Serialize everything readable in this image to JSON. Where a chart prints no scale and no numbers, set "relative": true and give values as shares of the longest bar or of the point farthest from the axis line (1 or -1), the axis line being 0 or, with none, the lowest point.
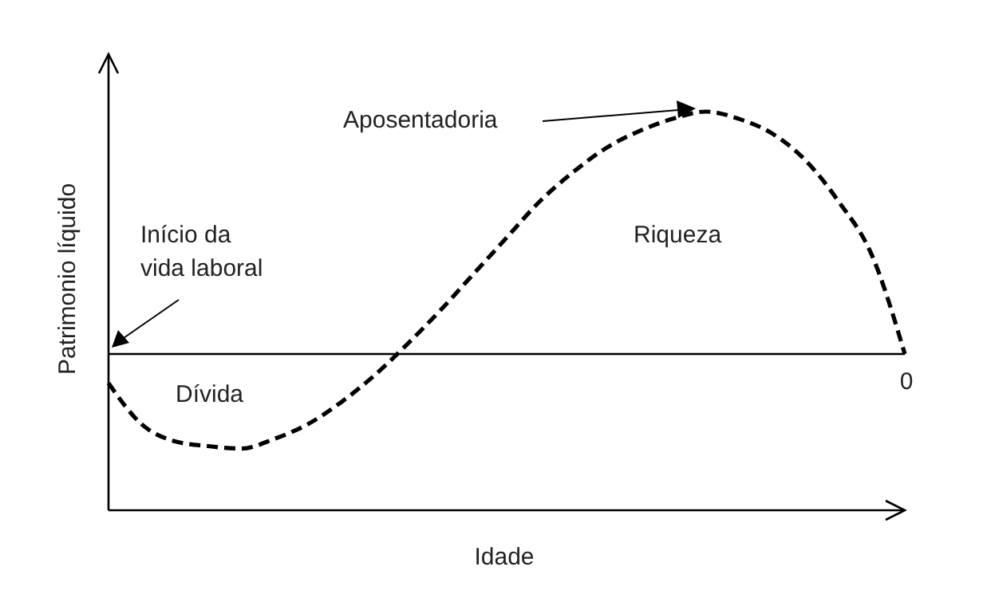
{
  "chart_data": {
    "type": "line",
    "relative": true,
    "xlabel": "Idade",
    "ylabel": "Patrimonio líquido",
    "categories": [
      null,
      null,
      null,
      null,
      null,
      null,
      null,
      null,
      null,
      null,
      null,
      null,
      null,
      null,
      null,
      null,
      null,
      null,
      null,
      null,
      null,
      null,
      null,
      null,
      null
    ],
    "series": [
      {
        "color": "#000000",
        "values": [
          -0.12,
          -0.29,
          -0.36,
          -0.38,
          -0.39,
          -0.35,
          -0.29,
          -0.2,
          -0.09,
          0.04,
          0.18,
          0.33,
          0.48,
          0.63,
          0.75,
          0.85,
          0.92,
          0.97,
          1,
          0.97,
          0.91,
          0.8,
          0.63,
          0.41,
          0
        ]
      }
    ],
    "line_style": "dashed",
    "marker": "none",
    "annotations": [
      "Aposentadoria",
      "Início da\nvida laboral",
      "Riqueza",
      "Dívida",
      "0"
    ]
  }
}
